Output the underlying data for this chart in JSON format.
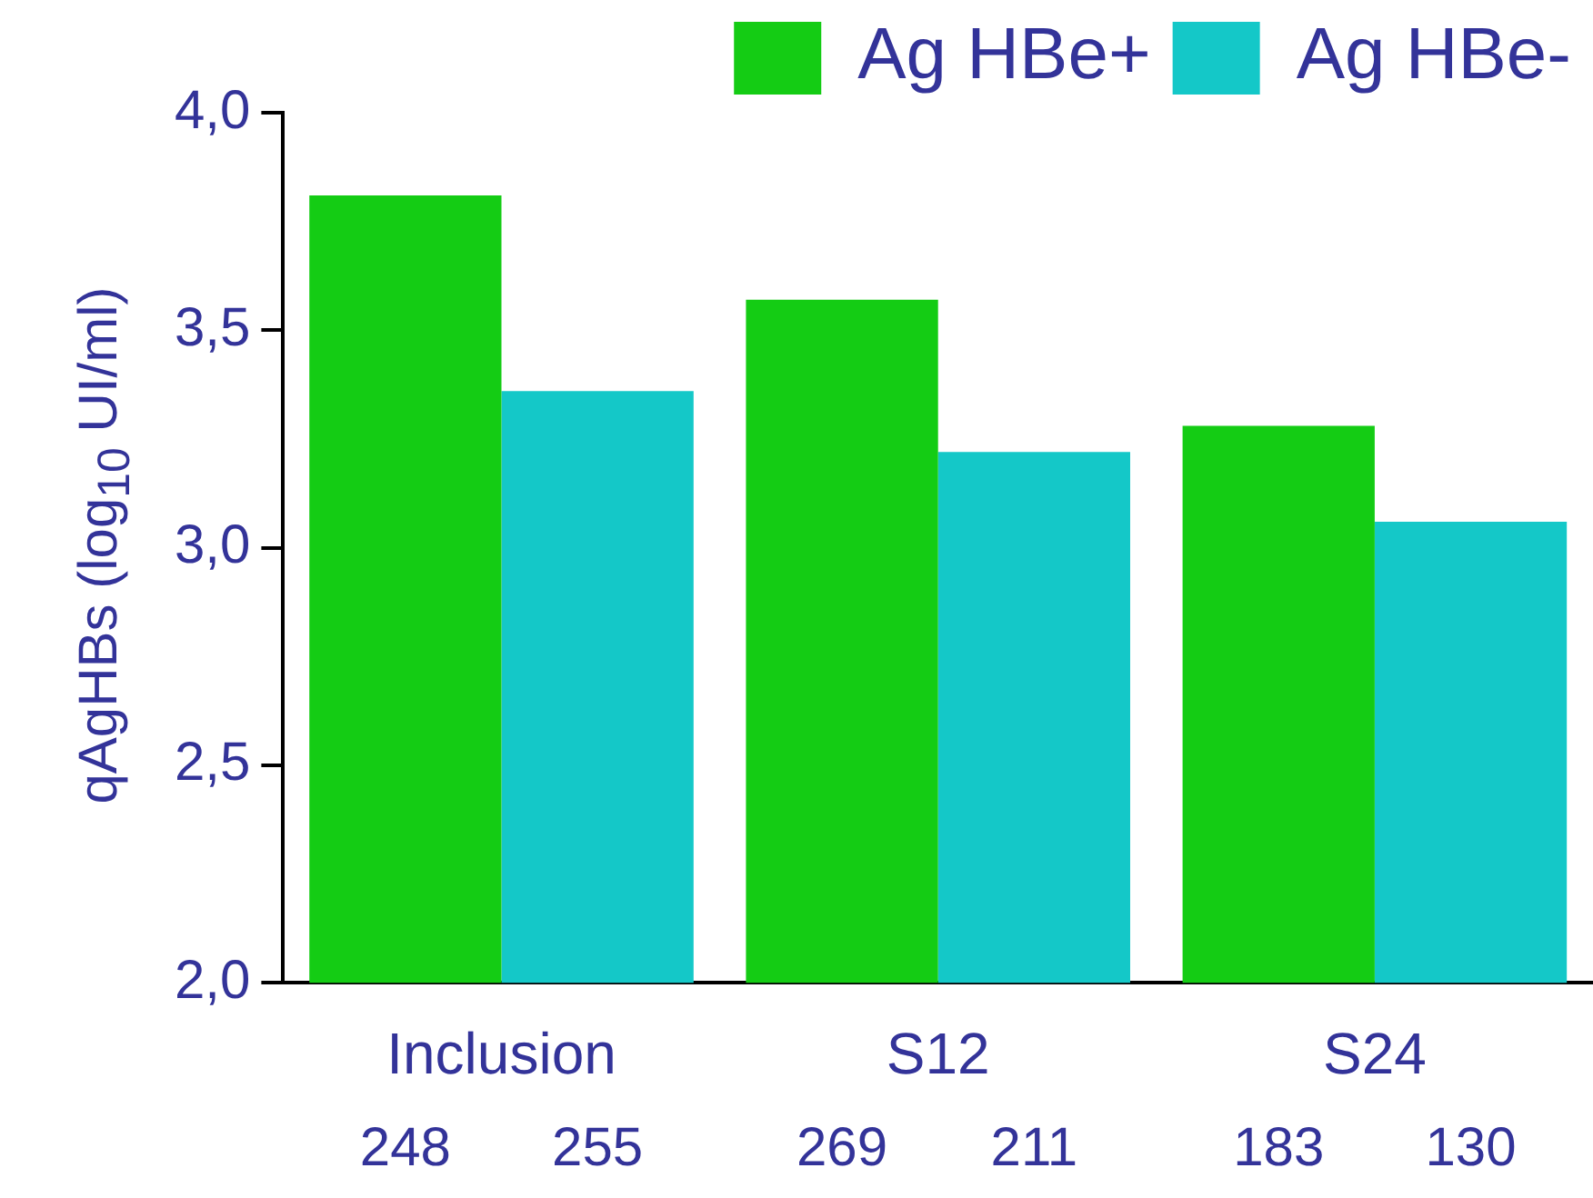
{
  "chart_data": {
    "type": "bar",
    "ylabel": "qAgHBs (log$_{10}$ UI/ml)",
    "categories": [
      "Inclusion",
      "S12",
      "S24"
    ],
    "series": [
      {
        "name": "Ag HBe+",
        "color": "#14cc14",
        "values": [
          3.81,
          3.57,
          3.28
        ]
      },
      {
        "name": "Ag HBe-",
        "color": "#14c8c8",
        "values": [
          3.36,
          3.22,
          3.06
        ]
      }
    ],
    "ylim": [
      2,
      4
    ],
    "yticks": [
      {
        "value": 2,
        "label": "2,0"
      },
      {
        "value": 2.5,
        "label": "2,5"
      },
      {
        "value": 3,
        "label": "3,0"
      },
      {
        "value": 3.5,
        "label": "3,5"
      },
      {
        "value": 4,
        "label": "4,0"
      }
    ],
    "annotations": [
      "248",
      "255",
      "269",
      "211",
      "183",
      "130"
    ],
    "grid": false,
    "legend": "top right"
  }
}
